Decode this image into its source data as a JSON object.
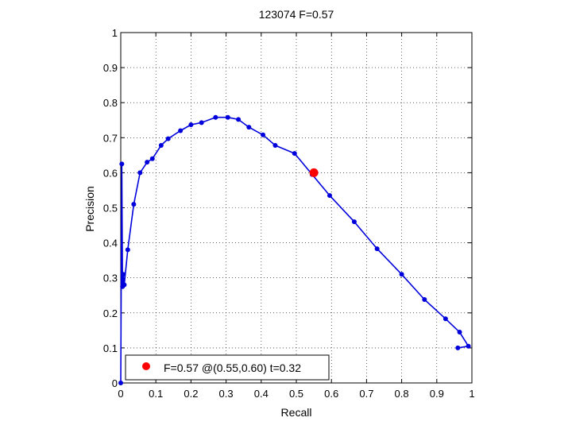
{
  "figure": {
    "title": "123074 F=0.57"
  },
  "chart_data": {
    "type": "line",
    "title": "123074 F=0.57",
    "xlabel": "Recall",
    "ylabel": "Precision",
    "xlim": [
      0,
      1
    ],
    "ylim": [
      0,
      1
    ],
    "xticks": [
      0,
      0.1,
      0.2,
      0.3,
      0.4,
      0.5,
      0.6,
      0.7,
      0.8,
      0.9,
      1
    ],
    "yticks": [
      0,
      0.1,
      0.2,
      0.3,
      0.4,
      0.5,
      0.6,
      0.7,
      0.8,
      0.9,
      1
    ],
    "xtick_labels": [
      "0",
      "0.1",
      "0.2",
      "0.3",
      "0.4",
      "0.5",
      "0.6",
      "0.7",
      "0.8",
      "0.9",
      "1"
    ],
    "ytick_labels": [
      "0",
      "0.1",
      "0.2",
      "0.3",
      "0.4",
      "0.5",
      "0.6",
      "0.7",
      "0.8",
      "0.9",
      "1"
    ],
    "grid": true,
    "grid_style": "dotted",
    "series": [
      {
        "color": "#0000dd",
        "marker": "dot",
        "x": [
          0,
          0.003,
          0.005,
          0.007,
          0.01,
          0.02,
          0.037,
          0.055,
          0.075,
          0.09,
          0.115,
          0.135,
          0.17,
          0.2,
          0.23,
          0.27,
          0.305,
          0.335,
          0.365,
          0.405,
          0.44,
          0.495,
          0.545,
          0.595,
          0.665,
          0.73,
          0.8,
          0.865,
          0.925,
          0.965,
          0.99,
          0.96
        ],
        "y": [
          0,
          0.625,
          0.275,
          0.31,
          0.28,
          0.38,
          0.51,
          0.6,
          0.63,
          0.64,
          0.678,
          0.697,
          0.72,
          0.737,
          0.743,
          0.758,
          0.758,
          0.752,
          0.73,
          0.708,
          0.678,
          0.655,
          0.595,
          0.535,
          0.46,
          0.383,
          0.31,
          0.238,
          0.183,
          0.145,
          0.105,
          0.1
        ]
      }
    ],
    "highlight": {
      "x": 0.55,
      "y": 0.6,
      "color": "#ff0000"
    },
    "legend": {
      "position": "bottom-left",
      "entries": [
        {
          "label": "F=0.57 @(0.55,0.60) t=0.32",
          "color": "#ff0000",
          "marker": "circle"
        }
      ]
    }
  }
}
